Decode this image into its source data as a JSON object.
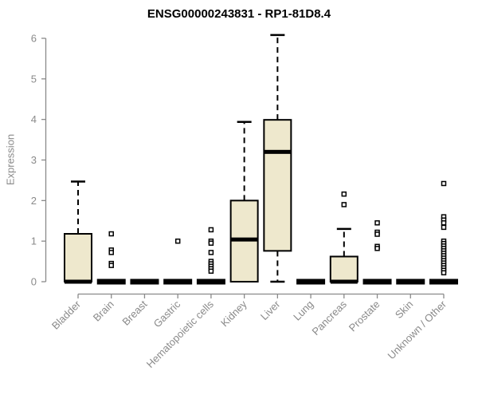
{
  "header": {
    "title": "ENSG00000243831 - RP1-81D8.4"
  },
  "chart_data": {
    "type": "boxplot",
    "title": "ENSG00000243831 - RP1-81D8.4",
    "xlabel": "",
    "ylabel": "Expression",
    "ylim": [
      0,
      6
    ],
    "yticks": [
      0,
      1,
      2,
      3,
      4,
      5,
      6
    ],
    "grid": false,
    "legend": false,
    "categories": [
      "Bladder",
      "Brain",
      "Breast",
      "Gastric",
      "Hematopoietic cells",
      "Kidney",
      "Liver",
      "Lung",
      "Pancreas",
      "Prostate",
      "Skin",
      "Unknown / Other"
    ],
    "boxes": [
      {
        "category": "Bladder",
        "low": 0,
        "q1": 0,
        "median": 0,
        "q3": 1.18,
        "high": 2.47,
        "outliers": []
      },
      {
        "category": "Brain",
        "low": 0,
        "q1": 0,
        "median": 0,
        "q3": 0,
        "high": 0,
        "outliers": [
          1.18,
          0.78,
          0.72,
          0.45,
          0.4
        ]
      },
      {
        "category": "Breast",
        "low": 0,
        "q1": 0,
        "median": 0,
        "q3": 0,
        "high": 0,
        "outliers": []
      },
      {
        "category": "Gastric",
        "low": 0,
        "q1": 0,
        "median": 0,
        "q3": 0,
        "high": 0,
        "outliers": [
          1.0
        ]
      },
      {
        "category": "Hematopoietic cells",
        "low": 0,
        "q1": 0,
        "median": 0,
        "q3": 0,
        "high": 0,
        "outliers": [
          1.28,
          1.0,
          0.95,
          0.72,
          0.5,
          0.44,
          0.38,
          0.32,
          0.26
        ]
      },
      {
        "category": "Kidney",
        "low": 0,
        "q1": 0,
        "median": 1.04,
        "q3": 2.0,
        "high": 3.94,
        "outliers": []
      },
      {
        "category": "Liver",
        "low": 0,
        "q1": 0.76,
        "median": 3.2,
        "q3": 3.99,
        "high": 6.08,
        "outliers": []
      },
      {
        "category": "Lung",
        "low": 0,
        "q1": 0,
        "median": 0,
        "q3": 0,
        "high": 0,
        "outliers": []
      },
      {
        "category": "Pancreas",
        "low": 0,
        "q1": 0,
        "median": 0,
        "q3": 0.62,
        "high": 1.3,
        "outliers": [
          2.16,
          1.9
        ]
      },
      {
        "category": "Prostate",
        "low": 0,
        "q1": 0,
        "median": 0,
        "q3": 0,
        "high": 0,
        "outliers": [
          1.45,
          1.22,
          1.17,
          0.87,
          0.82
        ]
      },
      {
        "category": "Skin",
        "low": 0,
        "q1": 0,
        "median": 0,
        "q3": 0,
        "high": 0,
        "outliers": []
      },
      {
        "category": "Unknown / Other",
        "low": 0,
        "q1": 0,
        "median": 0,
        "q3": 0,
        "high": 0,
        "outliers": [
          2.42,
          1.6,
          1.52,
          1.45,
          1.34,
          1.0,
          0.94,
          0.88,
          0.82,
          0.76,
          0.7,
          0.64,
          0.58,
          0.52,
          0.46,
          0.4,
          0.34,
          0.28,
          0.22
        ]
      }
    ],
    "colors": {
      "box_fill": "#EEE8CD",
      "box_stroke": "#000000",
      "median": "#000000",
      "whisker": "#000000",
      "outlier_stroke": "#000000",
      "outlier_fill": "#ffffff",
      "axis": "#8a8a8a",
      "tick_label": "#8a8a8a",
      "title": "#000000",
      "background": "#ffffff"
    }
  }
}
